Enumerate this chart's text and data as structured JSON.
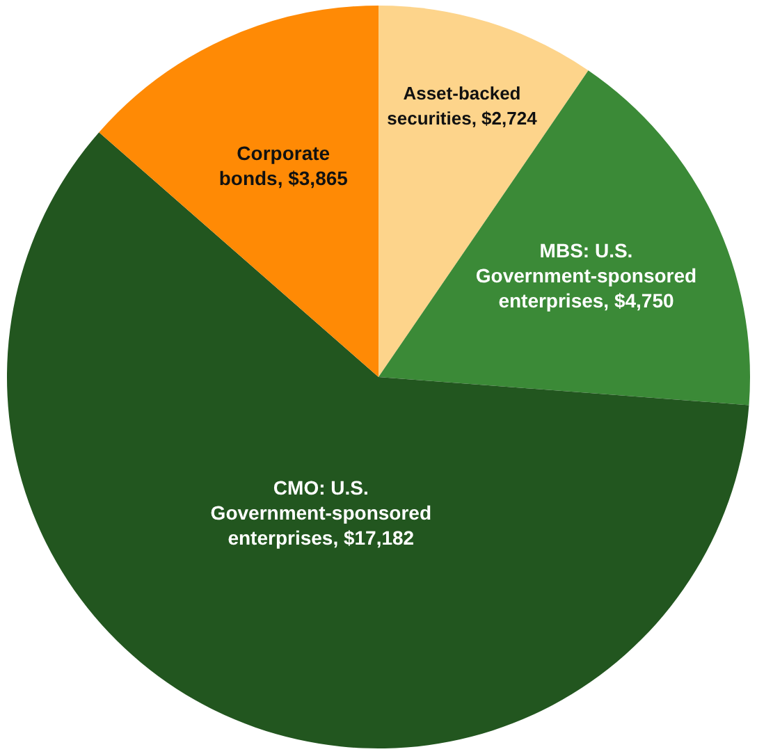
{
  "chart_data": {
    "type": "pie",
    "categories": [
      "Asset-backed securities",
      "MBS: U.S. Government-sponsored enterprises",
      "CMO: U.S. Government-sponsored enterprises",
      "Corporate bonds"
    ],
    "values": [
      2724,
      4750,
      17182,
      3865
    ],
    "value_labels": [
      "$2,724",
      "$4,750",
      "$17,182",
      "$3,865"
    ],
    "colors": [
      "#fdd48b",
      "#3b8a37",
      "#22561f",
      "#ff8a05"
    ]
  }
}
